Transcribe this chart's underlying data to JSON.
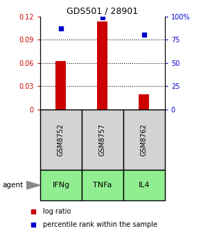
{
  "title": "GDS501 / 28901",
  "samples": [
    "GSM8752",
    "GSM8757",
    "GSM8762"
  ],
  "agents": [
    "IFNg",
    "TNFa",
    "IL4"
  ],
  "log_ratios": [
    0.062,
    0.113,
    0.02
  ],
  "percentile_ranks": [
    87,
    99,
    80
  ],
  "bar_color": "#cc0000",
  "dot_color": "#0000cc",
  "left_ylim": [
    0,
    0.12
  ],
  "right_ylim": [
    0,
    100
  ],
  "left_yticks": [
    0,
    0.03,
    0.06,
    0.09,
    0.12
  ],
  "right_yticks": [
    0,
    25,
    50,
    75,
    100
  ],
  "right_yticklabels": [
    "0",
    "25",
    "50",
    "75",
    "100%"
  ],
  "left_yticklabels": [
    "0",
    "0.03",
    "0.06",
    "0.09",
    "0.12"
  ],
  "grid_values": [
    0.03,
    0.06,
    0.09
  ],
  "sample_box_color": "#d3d3d3",
  "agent_box_color": "#90ee90",
  "legend_log_label": "log ratio",
  "legend_pct_label": "percentile rank within the sample",
  "bar_width": 0.25
}
